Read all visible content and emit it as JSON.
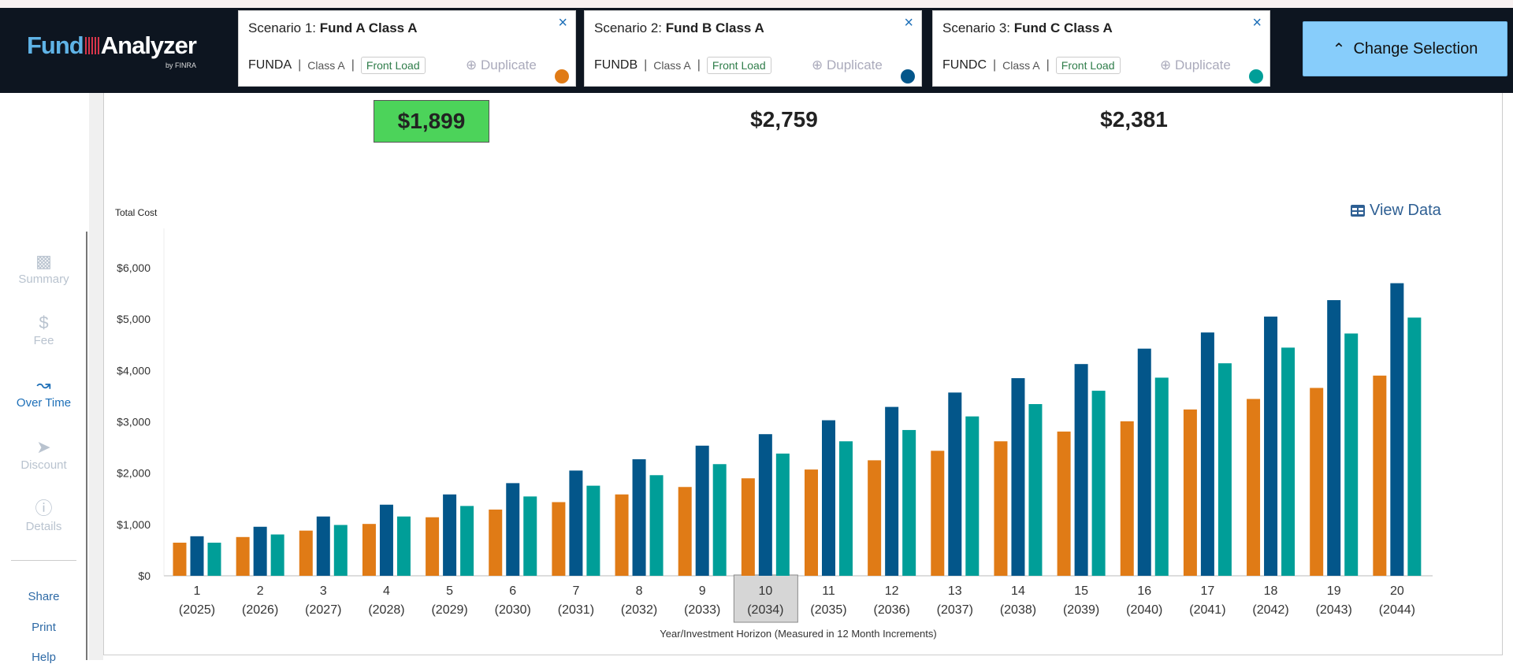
{
  "app": {
    "logo_text_1": "Fund",
    "logo_text_2": "Analyzer",
    "logo_by": "by FINRA"
  },
  "scenarios": [
    {
      "prefix": "Scenario 1:",
      "name": "Fund A Class A",
      "ticker": "FUNDA",
      "share_class": "Class A",
      "load_type": "Front Load",
      "duplicate_label": "Duplicate",
      "color": "#e07b16",
      "total_cost": "$1,899",
      "lowest": true
    },
    {
      "prefix": "Scenario 2:",
      "name": "Fund B Class A",
      "ticker": "FUNDB",
      "share_class": "Class A",
      "load_type": "Front Load",
      "duplicate_label": "Duplicate",
      "color": "#03568a",
      "total_cost": "$2,759",
      "lowest": false
    },
    {
      "prefix": "Scenario 3:",
      "name": "Fund C Class A",
      "ticker": "FUNDC",
      "share_class": "Class A",
      "load_type": "Front Load",
      "duplicate_label": "Duplicate",
      "color": "#009e98",
      "total_cost": "$2,381",
      "lowest": false
    }
  ],
  "header": {
    "change_selection_label": "Change Selection",
    "close_icon": "×"
  },
  "sidebar": {
    "items": [
      {
        "label": "Summary",
        "icon": "document-chart-icon",
        "active": false
      },
      {
        "label": "Fee",
        "icon": "dollar-icon",
        "active": false
      },
      {
        "label": "Over Time",
        "icon": "line-chart-icon",
        "active": true
      },
      {
        "label": "Discount",
        "icon": "tags-icon",
        "active": false
      },
      {
        "label": "Details",
        "icon": "info-icon",
        "active": false
      }
    ],
    "links": [
      "Share",
      "Print",
      "Help"
    ]
  },
  "view_data_label": "View Data",
  "chart_data": {
    "type": "bar",
    "ylabel": "Total Cost",
    "xlabel": "Year/Investment Horizon (Measured in 12 Month Increments)",
    "ylim": [
      0,
      6000
    ],
    "y_ticks": [
      "$0",
      "$1,000",
      "$2,000",
      "$3,000",
      "$4,000",
      "$5,000",
      "$6,000"
    ],
    "grid": false,
    "legend": "none",
    "categories": [
      "1",
      "2",
      "3",
      "4",
      "5",
      "6",
      "7",
      "8",
      "9",
      "10",
      "11",
      "12",
      "13",
      "14",
      "15",
      "16",
      "17",
      "18",
      "19",
      "20"
    ],
    "category_years": [
      "(2025)",
      "(2026)",
      "(2027)",
      "(2028)",
      "(2029)",
      "(2030)",
      "(2031)",
      "(2032)",
      "(2033)",
      "(2034)",
      "(2035)",
      "(2036)",
      "(2037)",
      "(2038)",
      "(2039)",
      "(2040)",
      "(2041)",
      "(2042)",
      "(2043)",
      "(2044)"
    ],
    "selected_category": "10",
    "series": [
      {
        "color": "#e07b16",
        "values": [
          645,
          755,
          880,
          1010,
          1140,
          1290,
          1435,
          1585,
          1730,
          1899,
          2070,
          2250,
          2435,
          2620,
          2810,
          3010,
          3240,
          3445,
          3660,
          3900
        ]
      },
      {
        "color": "#03568a",
        "values": [
          770,
          955,
          1155,
          1385,
          1585,
          1805,
          2050,
          2270,
          2535,
          2759,
          3030,
          3290,
          3570,
          3850,
          4125,
          4425,
          4740,
          5050,
          5370,
          5700
        ]
      },
      {
        "color": "#009e98",
        "values": [
          645,
          805,
          990,
          1155,
          1360,
          1545,
          1755,
          1960,
          2175,
          2381,
          2620,
          2840,
          3105,
          3345,
          3605,
          3860,
          4140,
          4445,
          4720,
          5030
        ]
      }
    ]
  }
}
